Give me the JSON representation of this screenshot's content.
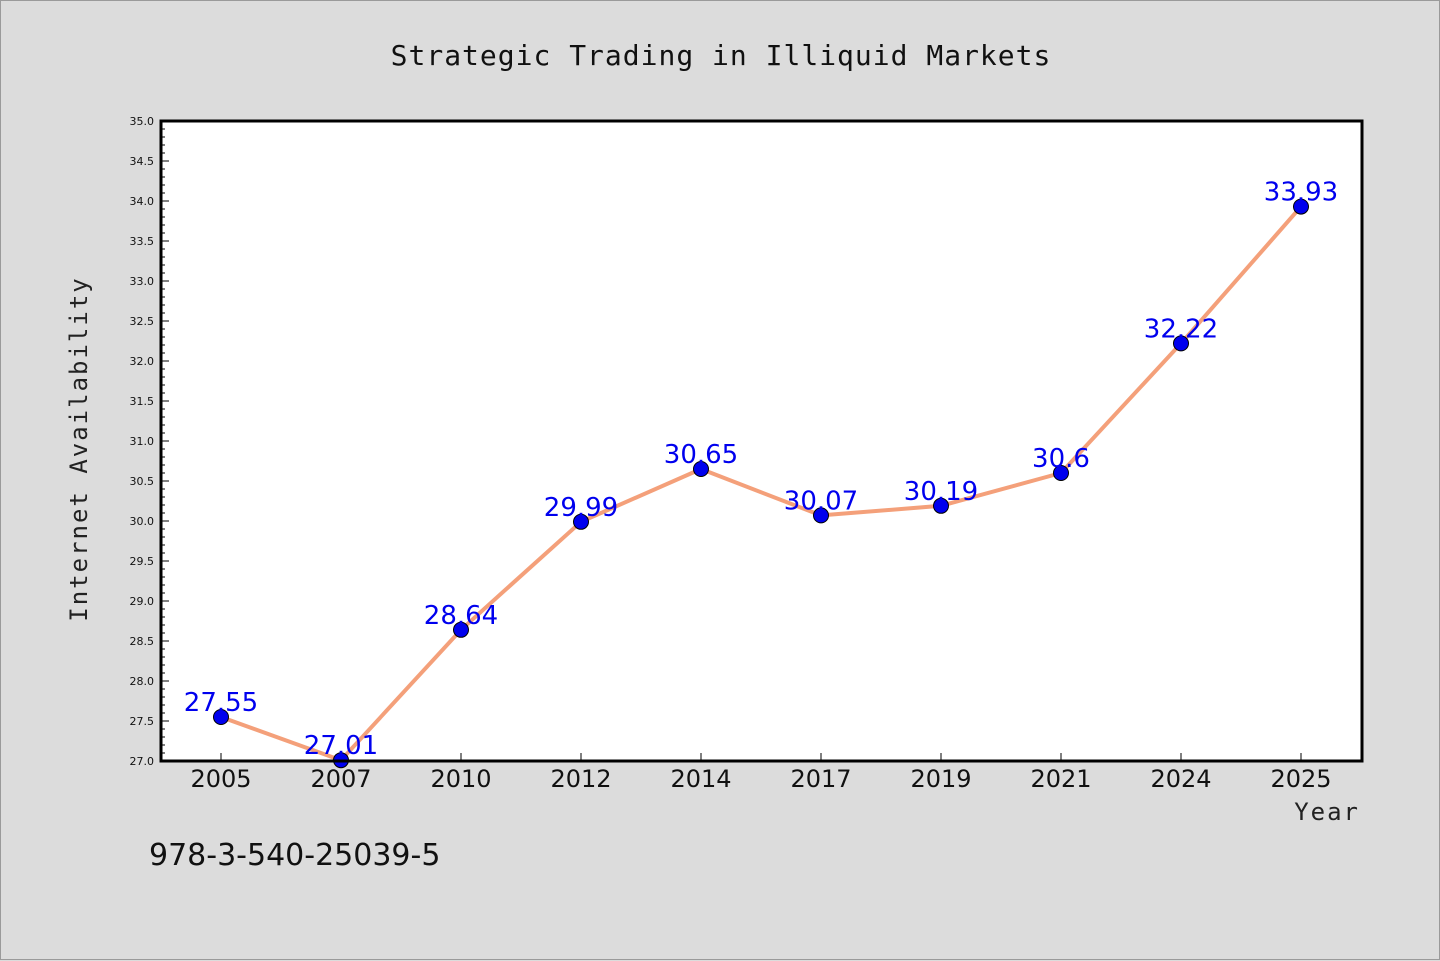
{
  "chart_data": {
    "type": "line",
    "title": "Strategic Trading in Illiquid Markets",
    "xlabel": "Year",
    "ylabel": "Internet Availability",
    "categories": [
      "2005",
      "2007",
      "2010",
      "2012",
      "2014",
      "2017",
      "2019",
      "2021",
      "2024",
      "2025"
    ],
    "values": [
      27.55,
      27.01,
      28.64,
      29.99,
      30.65,
      30.07,
      30.19,
      30.6,
      32.22,
      33.93
    ],
    "data_labels": [
      "27.55",
      "27.01",
      "28.64",
      "29.99",
      "30.65",
      "30.07",
      "30.19",
      "30.6",
      "32.22",
      "33.93"
    ],
    "ylim": [
      27.0,
      35.0
    ],
    "yticks": [
      "27.0",
      "27.5",
      "28.0",
      "28.5",
      "29.0",
      "29.5",
      "30.0",
      "30.5",
      "31.0",
      "31.5",
      "32.0",
      "32.5",
      "33.0",
      "33.5",
      "34.0",
      "34.5",
      "35.0"
    ],
    "grid": false,
    "legend": "none",
    "line_color": "#f4a07a",
    "marker_color": "#0000ee",
    "label_color": "#0000ee"
  },
  "annotation": "978-3-540-25039-5"
}
